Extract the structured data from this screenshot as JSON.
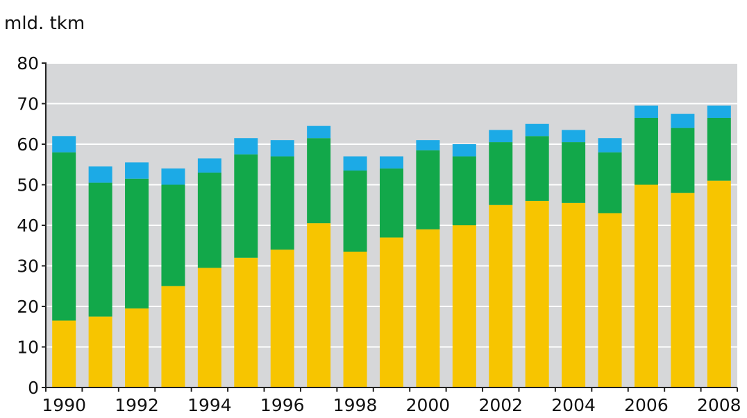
{
  "chart_data": {
    "type": "bar",
    "stacked": true,
    "title": "",
    "unit_label": "mld. tkm",
    "xlabel": "",
    "ylabel": "",
    "ylim": [
      0,
      80
    ],
    "yticks": [
      0,
      10,
      20,
      30,
      40,
      50,
      60,
      70,
      80
    ],
    "ytick_labels": [
      "0",
      "10",
      "20",
      "30",
      "40",
      "50",
      "60",
      "70",
      "80"
    ],
    "categories": [
      "1990",
      "1991",
      "1992",
      "1993",
      "1994",
      "1995",
      "1996",
      "1997",
      "1998",
      "1999",
      "2000",
      "2001",
      "2002",
      "2003",
      "2004",
      "2005",
      "2006",
      "2007",
      "2008"
    ],
    "xtick_labels": [
      "1990",
      "1992",
      "1994",
      "1996",
      "1998",
      "2000",
      "2002",
      "2004",
      "2006",
      "2008"
    ],
    "grid": true,
    "legend": "none",
    "plot_background": "#d6d7d9",
    "grid_color": "#ffffff",
    "series": [
      {
        "color": "#f7c500",
        "values": [
          16.5,
          17.5,
          19.5,
          25,
          29.5,
          32,
          34,
          40.5,
          33.5,
          37,
          39,
          40,
          45,
          46,
          45.5,
          43,
          50,
          48,
          51
        ]
      },
      {
        "color": "#12a84a",
        "values": [
          41.5,
          33,
          32,
          25,
          23.5,
          25.5,
          23,
          21,
          20,
          17,
          19.5,
          17,
          15.5,
          16,
          15,
          15,
          16.5,
          16,
          15.5
        ]
      },
      {
        "color": "#1caae6",
        "values": [
          4,
          4,
          4,
          4,
          3.5,
          4,
          4,
          3,
          3.5,
          3,
          2.5,
          3,
          3,
          3,
          3,
          3.5,
          3,
          3.5,
          3
        ]
      }
    ]
  }
}
